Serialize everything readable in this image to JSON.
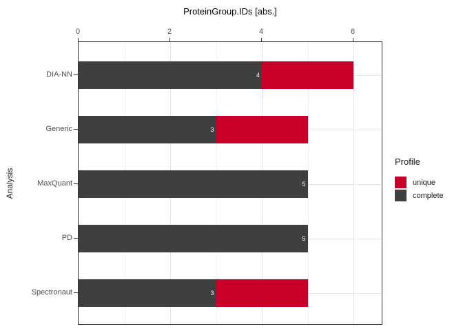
{
  "title": "ProteinGroup.IDs [abs.]",
  "y_axis_title": "Analysis",
  "legend": {
    "title": "Profile",
    "items": [
      {
        "label": "unique",
        "color": "#C8002A"
      },
      {
        "label": "complete",
        "color": "#3F3F3F"
      }
    ]
  },
  "colors": {
    "unique": "#C8002A",
    "complete": "#3F3F3F",
    "bar_label": "#FFFFFF",
    "axis_text": "#4D4D4D",
    "panel_border": "#333333",
    "grid_major": "#E4E4E4",
    "grid_minor": "#F0F0F0"
  },
  "chart_data": {
    "type": "bar",
    "orientation": "horizontal",
    "stacked": true,
    "title": "ProteinGroup.IDs [abs.]",
    "xlabel": "ProteinGroup.IDs [abs.]",
    "ylabel": "Analysis",
    "categories": [
      "DIA-NN",
      "Generic",
      "MaxQuant",
      "PD",
      "Spectronaut"
    ],
    "series": [
      {
        "name": "complete",
        "color": "#3F3F3F",
        "values": [
          4,
          3,
          5,
          5,
          3
        ]
      },
      {
        "name": "unique",
        "color": "#C8002A",
        "values": [
          2,
          2,
          0,
          0,
          2
        ]
      }
    ],
    "totals": [
      6,
      5,
      5,
      5,
      5
    ],
    "bar_labels": [
      "4",
      "3",
      "5",
      "5",
      "3"
    ],
    "x_ticks": [
      0,
      2,
      4,
      6
    ],
    "x_minor_gridlines": [
      1,
      3,
      5
    ],
    "xlim": [
      0,
      6.65
    ],
    "grid": true,
    "legend_position": "right",
    "legend_title": "Profile"
  }
}
